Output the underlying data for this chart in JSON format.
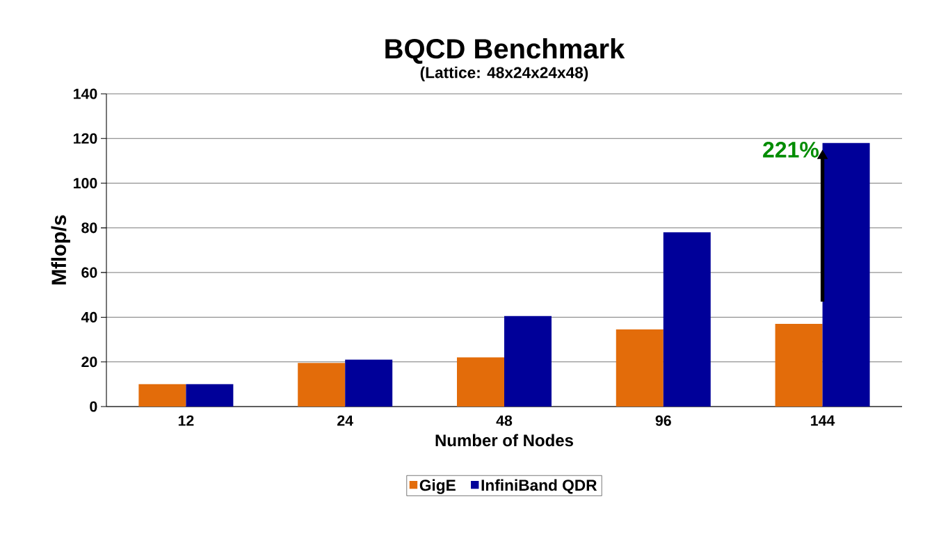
{
  "chart_data": {
    "type": "bar",
    "title": "BQCD Benchmark",
    "subtitle": "(Lattice: 48x24x24x48)",
    "xlabel": "Number of Nodes",
    "ylabel": "Mflop/s",
    "categories": [
      "12",
      "24",
      "48",
      "96",
      "144"
    ],
    "series": [
      {
        "name": "GigE",
        "color": "#e36c0a",
        "values": [
          10,
          19.5,
          22,
          34.5,
          37
        ]
      },
      {
        "name": "InfiniBand QDR",
        "color": "#000099",
        "values": [
          10,
          21,
          40.5,
          78,
          118
        ]
      }
    ],
    "ylim": [
      0,
      140
    ],
    "yticks": [
      0,
      20,
      40,
      60,
      80,
      100,
      120,
      140
    ],
    "grid": "y",
    "legend": "bottom",
    "annotations": [
      {
        "text": "221%",
        "x": "144",
        "y": 115
      }
    ]
  }
}
